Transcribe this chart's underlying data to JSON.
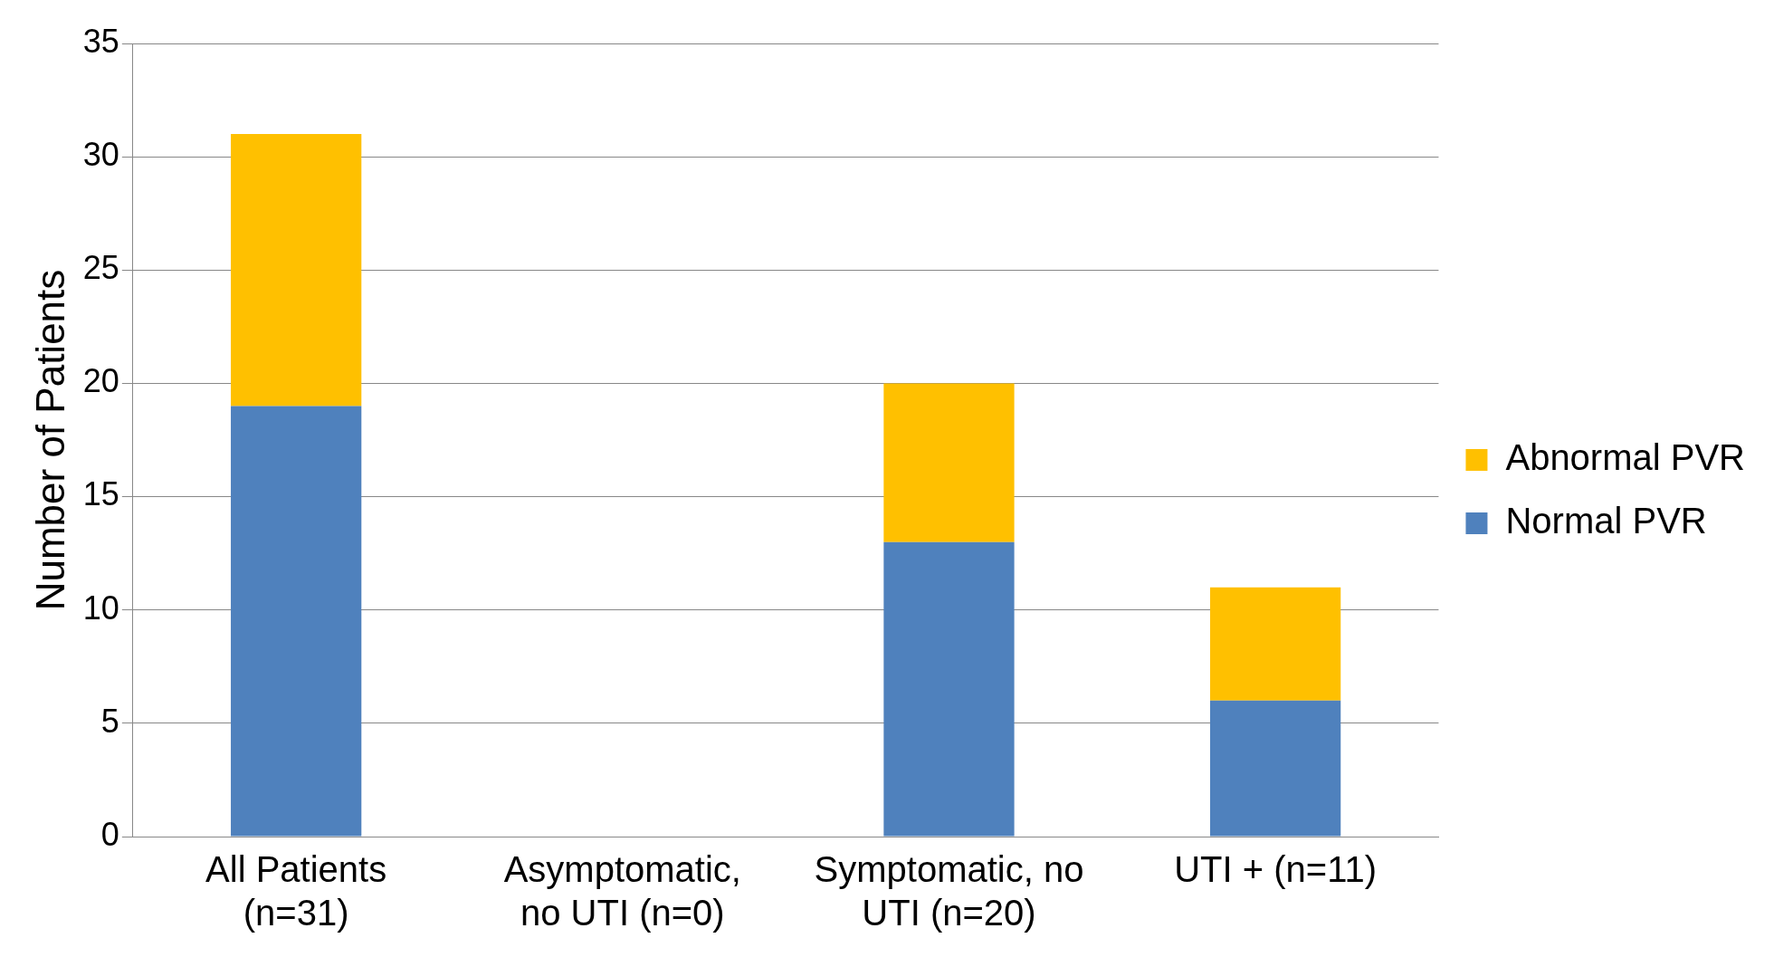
{
  "chart_data": {
    "type": "bar",
    "stacked": true,
    "ylabel": "Number of Patients",
    "categories": [
      "All Patients (n=31)",
      "Asymptomatic, no UTI (n=0)",
      "Symptomatic, no UTI (n=20)",
      "UTI + (n=11)"
    ],
    "series": [
      {
        "name": "Normal PVR",
        "color": "#4f81bd",
        "values": [
          19,
          0,
          13,
          6
        ]
      },
      {
        "name": "Abnormal PVR",
        "color": "#ffc000",
        "values": [
          12,
          0,
          7,
          5
        ]
      }
    ],
    "ylim": [
      0,
      35
    ],
    "yticks": [
      0,
      5,
      10,
      15,
      20,
      25,
      30,
      35
    ],
    "grid": "y",
    "legend": "right"
  }
}
